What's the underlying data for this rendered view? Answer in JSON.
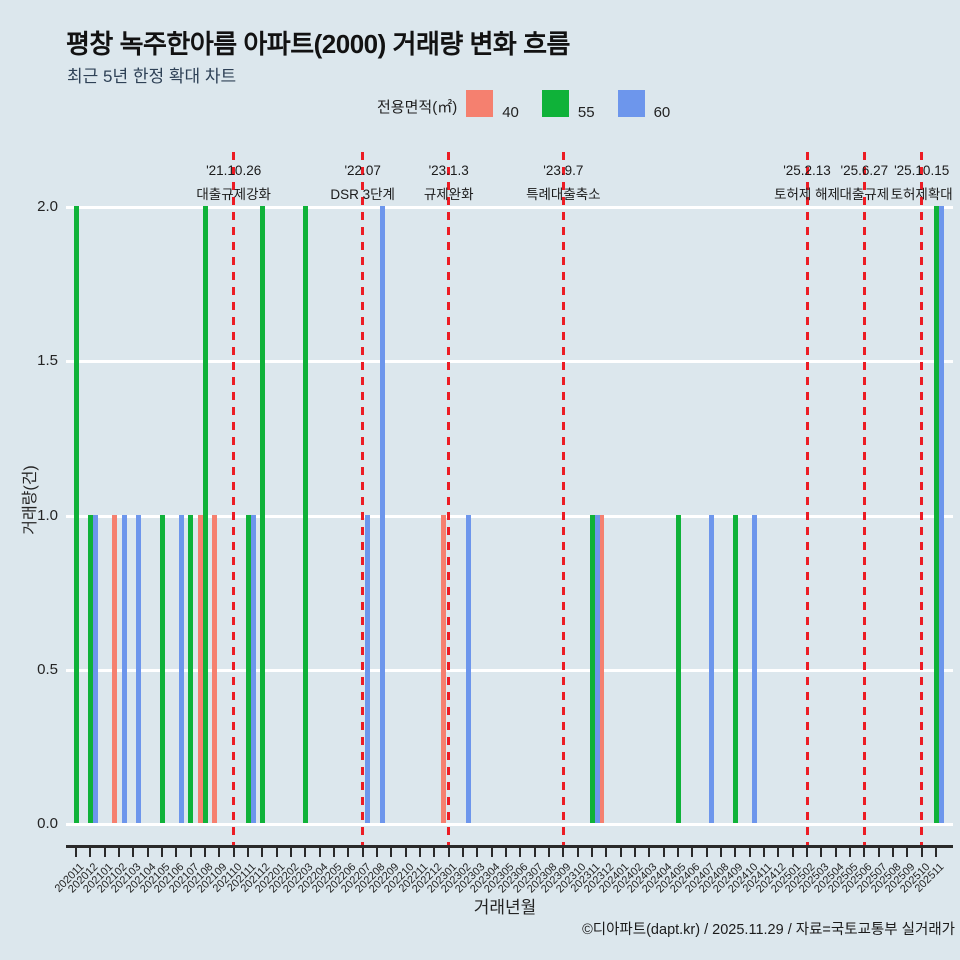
{
  "title": "평창 녹주한아름 아파트(2000) 거래량 변화 흐름",
  "subtitle": "최근 5년 한정 확대 차트",
  "legend": {
    "title": "전용면적(㎡)",
    "items": [
      {
        "label": "40",
        "color": "#f5806f"
      },
      {
        "label": "55",
        "color": "#0fb239"
      },
      {
        "label": "60",
        "color": "#6d96ec"
      }
    ]
  },
  "colors": {
    "background": "#dce7ed",
    "grid": "#ffffff",
    "axis": "#2a2a2a",
    "event_line": "#ec1c24"
  },
  "chart_data": {
    "type": "bar",
    "title": "평창 녹주한아름 아파트(2000) 거래량 변화 흐름",
    "xlabel": "거래년월",
    "ylabel": "거래량(건)",
    "ylim": [
      0,
      2
    ],
    "yticks": [
      "0.0",
      "0.5",
      "1.0",
      "1.5",
      "2.0"
    ],
    "categories": [
      "202011",
      "202012",
      "202101",
      "202102",
      "202103",
      "202104",
      "202105",
      "202106",
      "202107",
      "202108",
      "202109",
      "202110",
      "202111",
      "202112",
      "202201",
      "202202",
      "202203",
      "202204",
      "202205",
      "202206",
      "202207",
      "202208",
      "202209",
      "202210",
      "202211",
      "202212",
      "202301",
      "202302",
      "202303",
      "202304",
      "202305",
      "202306",
      "202307",
      "202308",
      "202309",
      "202310",
      "202311",
      "202312",
      "202401",
      "202402",
      "202403",
      "202404",
      "202405",
      "202406",
      "202407",
      "202408",
      "202409",
      "202410",
      "202411",
      "202412",
      "202501",
      "202502",
      "202503",
      "202504",
      "202505",
      "202506",
      "202507",
      "202508",
      "202509",
      "202510",
      "202511"
    ],
    "series": [
      {
        "name": "40",
        "color": "#f5806f",
        "points": {
          "202102": 1,
          "202108": 1,
          "202109": 1,
          "202301": 1,
          "202312": 1
        }
      },
      {
        "name": "55",
        "color": "#0fb239",
        "points": {
          "202011": 2,
          "202012": 1,
          "202105": 1,
          "202107": 1,
          "202108": 2,
          "202111": 1,
          "202112": 2,
          "202203": 2,
          "202311": 1,
          "202405": 1,
          "202409": 1,
          "202511": 2
        }
      },
      {
        "name": "60",
        "color": "#6d96ec",
        "points": {
          "202012": 1,
          "202102": 1,
          "202103": 1,
          "202106": 1,
          "202111": 1,
          "202207": 1,
          "202208": 2,
          "202302": 1,
          "202311": 1,
          "202407": 1,
          "202410": 1,
          "202511": 2
        }
      }
    ],
    "annotations": [
      {
        "month": "202110",
        "date": "'21.10.26",
        "label": "대출규제강화"
      },
      {
        "month": "202207",
        "date": "'22.07",
        "label": "DSR 3단계"
      },
      {
        "month": "202301",
        "date": "'23.1.3",
        "label": "규제완화"
      },
      {
        "month": "202309",
        "date": "'23.9.7",
        "label": "특례대출축소"
      },
      {
        "month": "202502",
        "date": "'25.2.13",
        "label": "토허제 해제"
      },
      {
        "month": "202506",
        "date": "'25.6.27",
        "label": "대출규제"
      },
      {
        "month": "202510",
        "date": "'25.10.15",
        "label": "토허제확대"
      }
    ]
  },
  "footer": "©디아파트(dapt.kr) / 2025.11.29 / 자료=국토교통부 실거래가"
}
